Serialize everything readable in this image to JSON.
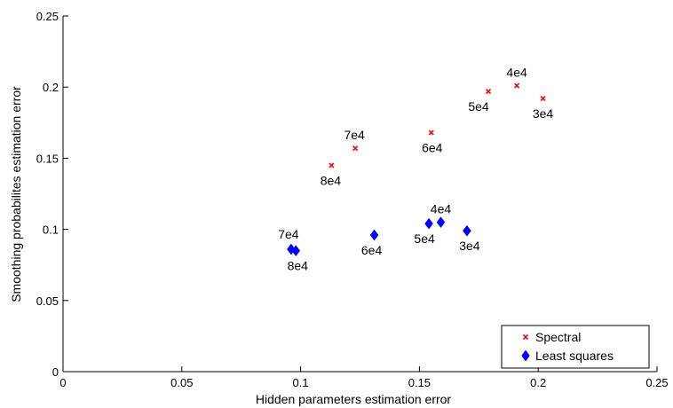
{
  "chart_data": {
    "type": "scatter",
    "title": "",
    "xlabel": "Hidden parameters estimation error",
    "ylabel": "Smoothing probabilites estimation error",
    "xlim": [
      0,
      0.25
    ],
    "ylim": [
      0,
      0.25
    ],
    "xticks": [
      "0",
      "0.05",
      "0.1",
      "0.15",
      "0.2",
      "0.25"
    ],
    "yticks": [
      "0",
      "0.05",
      "0.1",
      "0.15",
      "0.2",
      "0.25"
    ],
    "grid": false,
    "legend_position": "bottom-right",
    "series": [
      {
        "name": "Spectral",
        "marker": "x",
        "color": "#ff0000",
        "points": [
          {
            "x": 0.202,
            "y": 0.192,
            "label": "3e4"
          },
          {
            "x": 0.191,
            "y": 0.201,
            "label": "4e4"
          },
          {
            "x": 0.179,
            "y": 0.197,
            "label": "5e4"
          },
          {
            "x": 0.155,
            "y": 0.168,
            "label": "6e4"
          },
          {
            "x": 0.123,
            "y": 0.157,
            "label": "7e4"
          },
          {
            "x": 0.113,
            "y": 0.145,
            "label": "8e4"
          }
        ]
      },
      {
        "name": "Least squares",
        "marker": "diamond",
        "color": "#0000ff",
        "points": [
          {
            "x": 0.17,
            "y": 0.099,
            "label": "3e4"
          },
          {
            "x": 0.159,
            "y": 0.105,
            "label": "4e4"
          },
          {
            "x": 0.154,
            "y": 0.104,
            "label": "5e4"
          },
          {
            "x": 0.131,
            "y": 0.096,
            "label": "6e4"
          },
          {
            "x": 0.096,
            "y": 0.086,
            "label": "7e4"
          },
          {
            "x": 0.098,
            "y": 0.085,
            "label": "8e4"
          }
        ]
      }
    ]
  }
}
